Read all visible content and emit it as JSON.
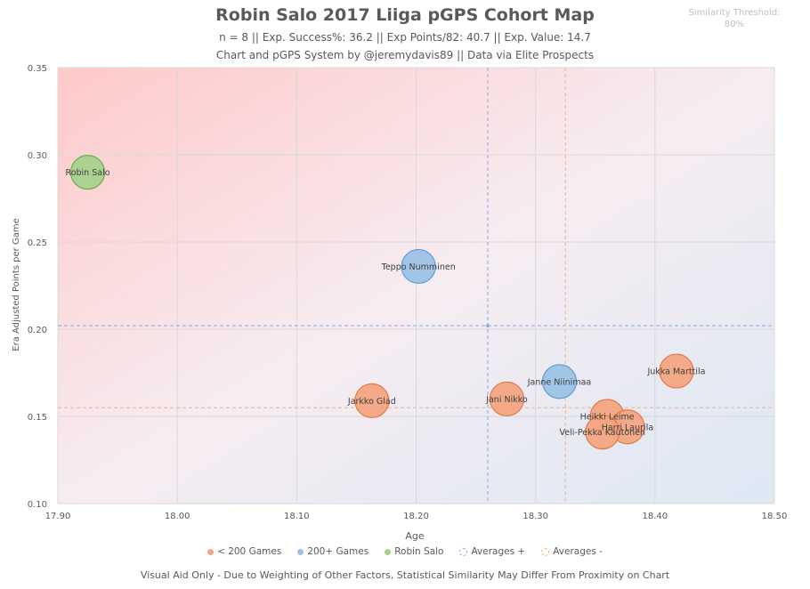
{
  "header": {
    "title": "Robin Salo 2017 Liiga pGPS Cohort Map",
    "subtitle1": "n = 8 || Exp. Success%: 36.2 || Exp Points/82: 40.7 || Exp. Value: 14.7",
    "subtitle2": "Chart and pGPS System by @jeremydavis89 || Data via Elite Prospects"
  },
  "threshold": {
    "label": "Similarity Threshold:",
    "value": "80%"
  },
  "footnote": "Visual Aid Only - Due to Weighting of Other Factors, Statistical Similarity May Differ From Proximity on Chart",
  "colors": {
    "under200": "#f4a582",
    "under200_stroke": "#e07b48",
    "over200": "#9dc3e6",
    "over200_stroke": "#5b9bd5",
    "subject": "#a9d18e",
    "subject_stroke": "#70ad47",
    "grid": "#d9d9d9",
    "avg_plus": "#8faadc",
    "avg_minus": "#f4b183"
  },
  "chart_data": {
    "type": "scatter",
    "xlabel": "Age",
    "ylabel": "Era Adjusted Points per Game",
    "xlim": [
      17.9,
      18.5
    ],
    "ylim": [
      0.1,
      0.35
    ],
    "x_ticks": [
      "17.90",
      "18.00",
      "18.10",
      "18.20",
      "18.30",
      "18.40",
      "18.50"
    ],
    "y_ticks": [
      "0.10",
      "0.15",
      "0.20",
      "0.25",
      "0.30",
      "0.35"
    ],
    "grid": true,
    "legend_position": "bottom",
    "legend": [
      {
        "label": "< 200 Games",
        "key": "under200"
      },
      {
        "label": "200+ Games",
        "key": "over200"
      },
      {
        "label": "Robin Salo",
        "key": "subject"
      },
      {
        "label": "Averages +",
        "key": "avg_plus"
      },
      {
        "label": "Averages -",
        "key": "avg_minus"
      }
    ],
    "averages_plus": {
      "x": 18.26,
      "y": 0.202
    },
    "averages_minus": {
      "x": 18.325,
      "y": 0.155
    },
    "points": [
      {
        "name": "Robin Salo",
        "x": 17.925,
        "y": 0.29,
        "group": "subject"
      },
      {
        "name": "Teppo Numminen",
        "x": 18.202,
        "y": 0.236,
        "group": "over200"
      },
      {
        "name": "Janne Niinimaa",
        "x": 18.32,
        "y": 0.17,
        "group": "over200"
      },
      {
        "name": "Jarkko Glad",
        "x": 18.163,
        "y": 0.159,
        "group": "under200"
      },
      {
        "name": "Jani Nikko",
        "x": 18.276,
        "y": 0.16,
        "group": "under200"
      },
      {
        "name": "Jukka Marttila",
        "x": 18.418,
        "y": 0.176,
        "group": "under200"
      },
      {
        "name": "Heikki Leime",
        "x": 18.36,
        "y": 0.15,
        "group": "under200"
      },
      {
        "name": "Harri Laurila",
        "x": 18.377,
        "y": 0.144,
        "group": "under200"
      },
      {
        "name": "Veli-Pekka Kautonen",
        "x": 18.356,
        "y": 0.141,
        "group": "under200"
      }
    ]
  }
}
